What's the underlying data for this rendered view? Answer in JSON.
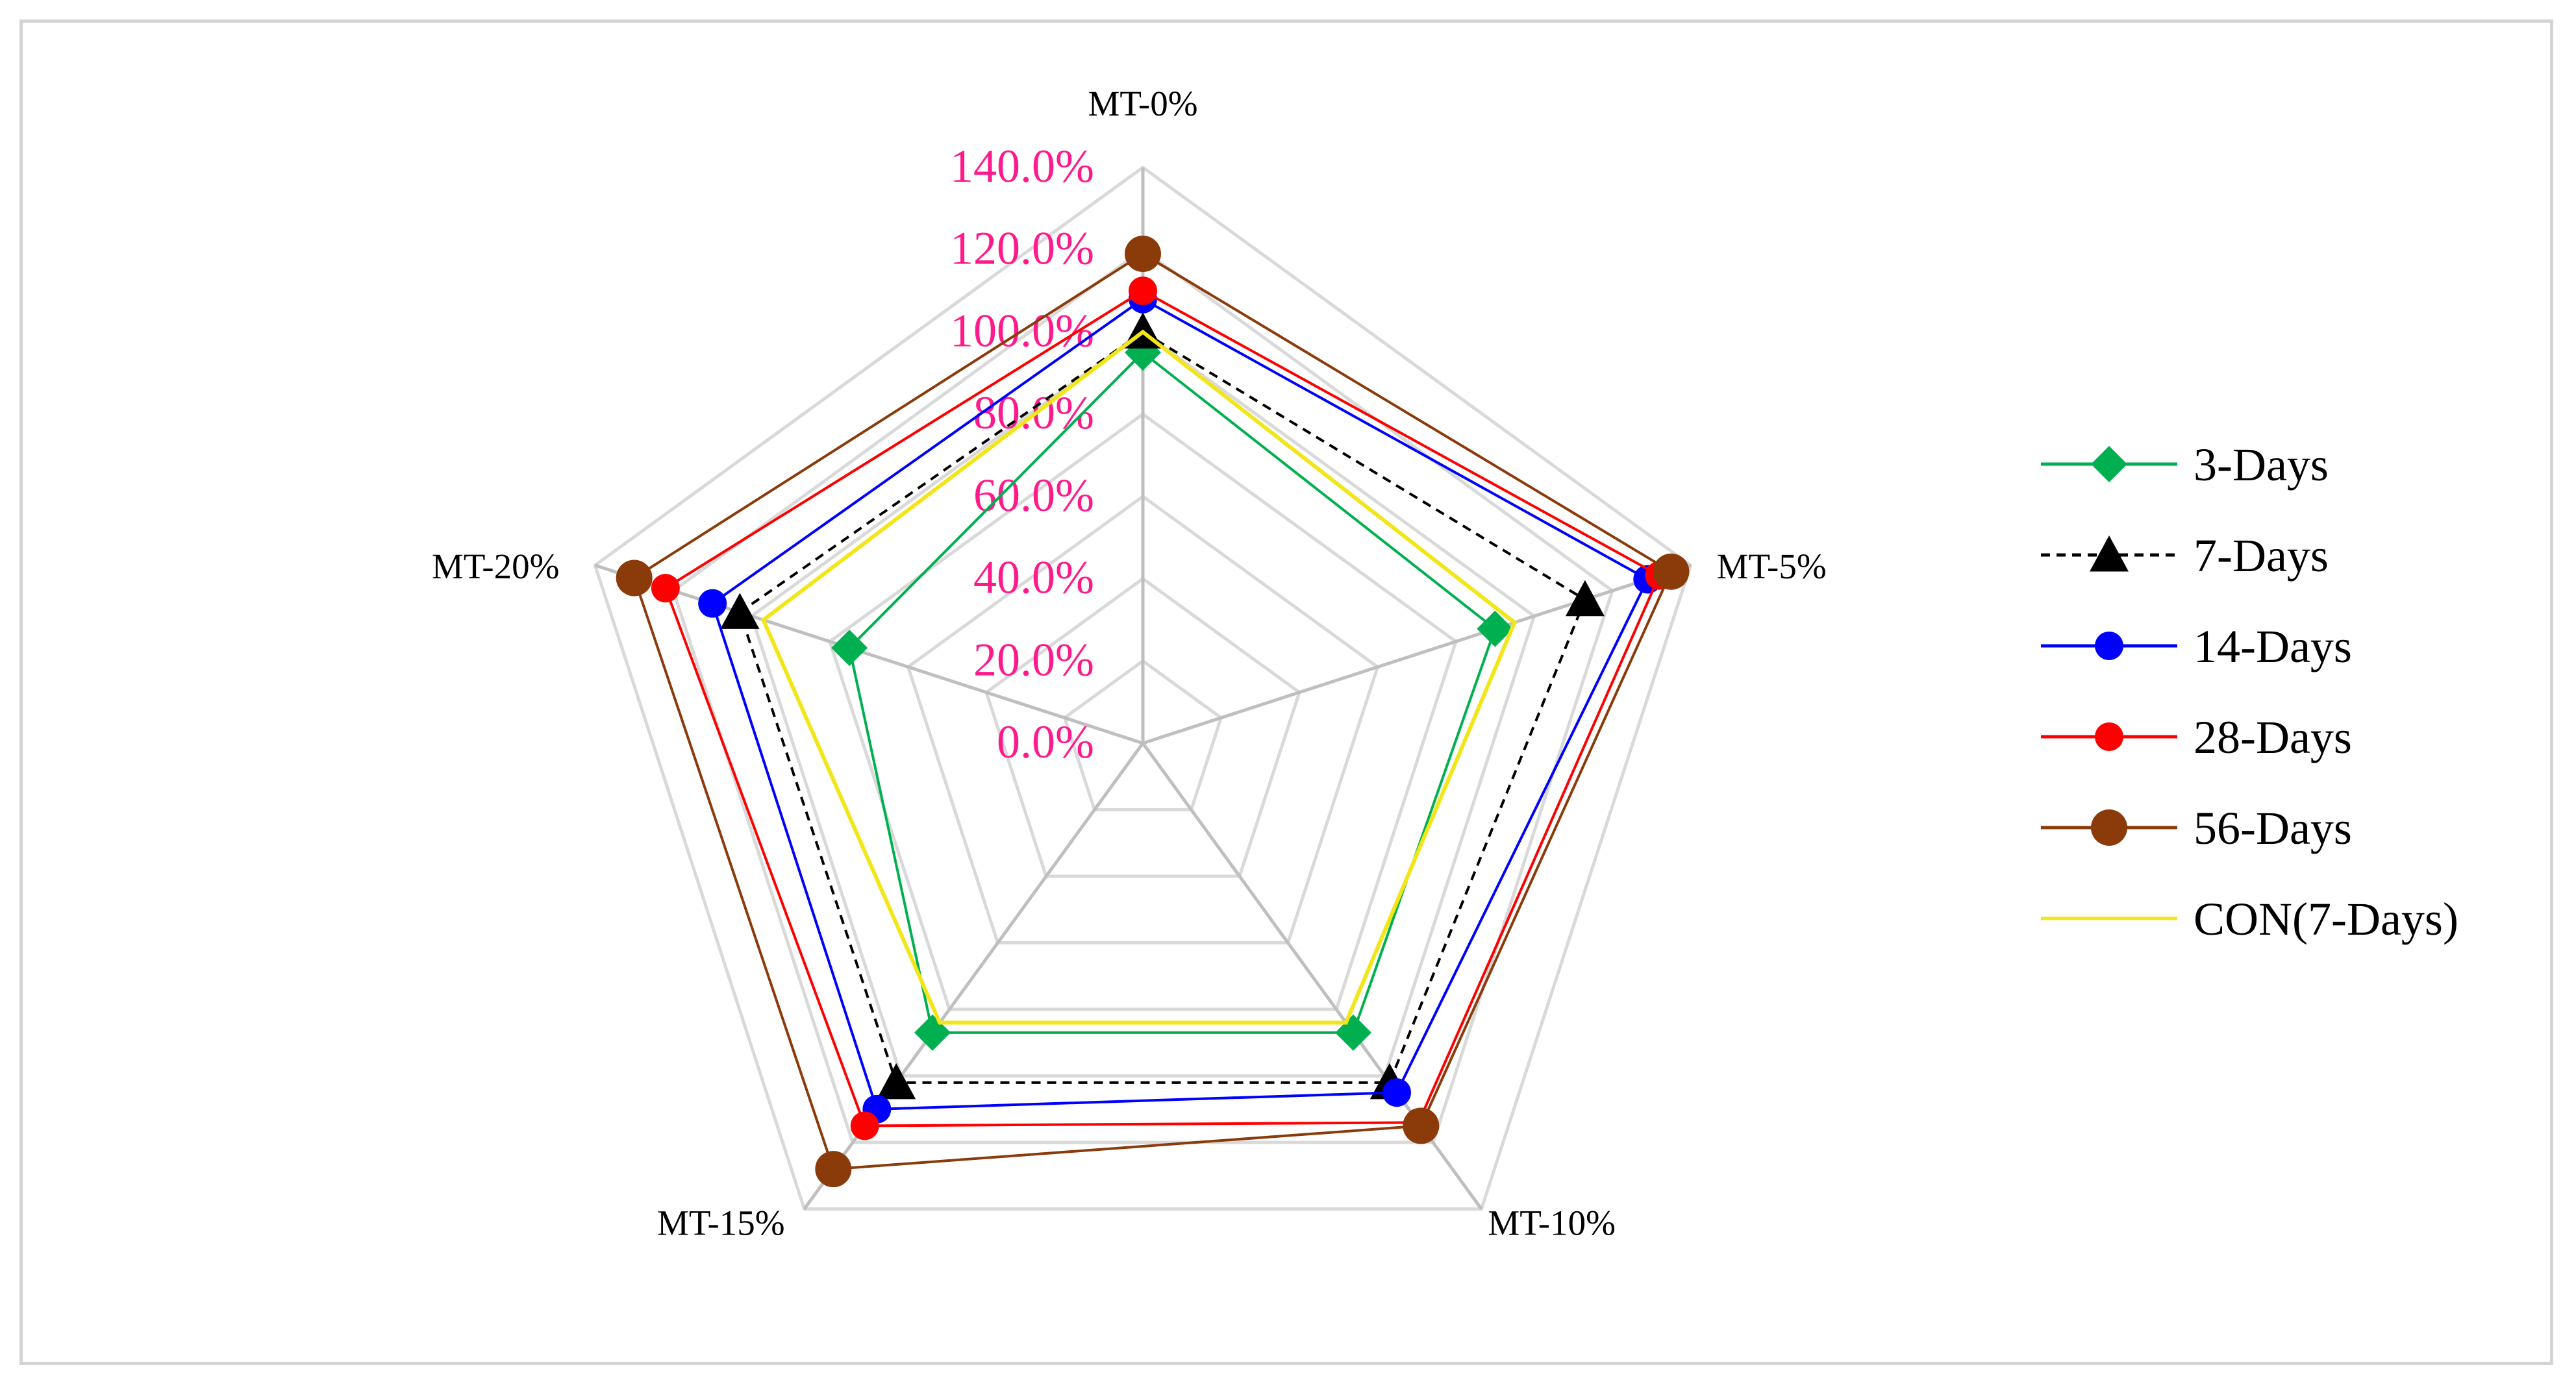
{
  "chart_data": {
    "type": "radar",
    "title": "",
    "categories": [
      "MT-0%",
      "MT-5%",
      "MT-10%",
      "MT-15%",
      "MT-20%"
    ],
    "rlim": [
      0,
      140
    ],
    "tick_step": 20,
    "tick_labels": [
      "0.0%",
      "20.0%",
      "40.0%",
      "60.0%",
      "80.0%",
      "100.0%",
      "120.0%",
      "140.0%"
    ],
    "grid": true,
    "legend_position": "right",
    "series": [
      {
        "name": "3-Days",
        "values": [
          95,
          90,
          87,
          87,
          75
        ],
        "color": "#00b050",
        "marker": "diamond",
        "dash": "solid"
      },
      {
        "name": "7-Days",
        "values": [
          100,
          113,
          102,
          102,
          103
        ],
        "color": "#000000",
        "marker": "triangle",
        "dash": "dashed"
      },
      {
        "name": "14-Days",
        "values": [
          108,
          129,
          105,
          110,
          110
        ],
        "color": "#0000ff",
        "marker": "circle",
        "dash": "solid"
      },
      {
        "name": "28-Days",
        "values": [
          110,
          132,
          114,
          115,
          122
        ],
        "color": "#ff0000",
        "marker": "circle",
        "dash": "solid"
      },
      {
        "name": "56-Days",
        "values": [
          119,
          135,
          115,
          128,
          130
        ],
        "color": "#8b3a0a",
        "marker": "bigcircle",
        "dash": "solid"
      },
      {
        "name": "CON(7-Days)",
        "values": [
          100,
          95,
          84,
          84,
          97
        ],
        "color": "#f2e61a",
        "marker": "none",
        "dash": "solid"
      }
    ]
  }
}
